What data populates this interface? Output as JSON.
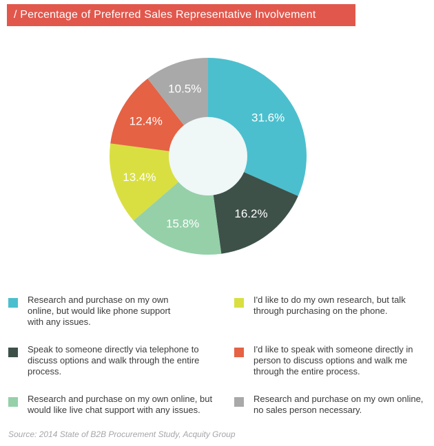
{
  "title": "/ Percentage of Preferred Sales Representative Involvement",
  "source": "Source: 2014 State of B2B Procurement Study, Acquity Group",
  "chart_data": {
    "type": "pie",
    "donut": true,
    "slices": [
      {
        "label": "31.6%",
        "value": 31.6,
        "color": "#4cbfce"
      },
      {
        "label": "16.2%",
        "value": 16.2,
        "color": "#3d5149"
      },
      {
        "label": "15.8%",
        "value": 15.8,
        "color": "#95d0a9"
      },
      {
        "label": "13.4%",
        "value": 13.4,
        "color": "#d9df41"
      },
      {
        "label": "12.4%",
        "value": 12.4,
        "color": "#e56244"
      },
      {
        "label": "10.5%",
        "value": 10.5,
        "color": "#a9a9a9"
      }
    ],
    "center_color": "#eff7f7"
  },
  "legend": {
    "items": [
      {
        "text": "Research and purchase on my own online, but would like phone support with any issues.",
        "color": "#4cbfce"
      },
      {
        "text": "Speak to someone directly via telephone to discuss options and walk through the entire process.",
        "color": "#3d5149"
      },
      {
        "text": "Research and purchase on my own online, but would like live chat support with any issues.",
        "color": "#95d0a9"
      },
      {
        "text": "I'd like to do my own research, but talk through purchasing on the phone.",
        "color": "#d9df41"
      },
      {
        "text": "I'd like to speak with someone directly in person to discuss options and walk me through the entire process.",
        "color": "#e56244"
      },
      {
        "text": "Research and purchase on my own online, no sales person necessary.",
        "color": "#a9a9a9"
      }
    ]
  }
}
